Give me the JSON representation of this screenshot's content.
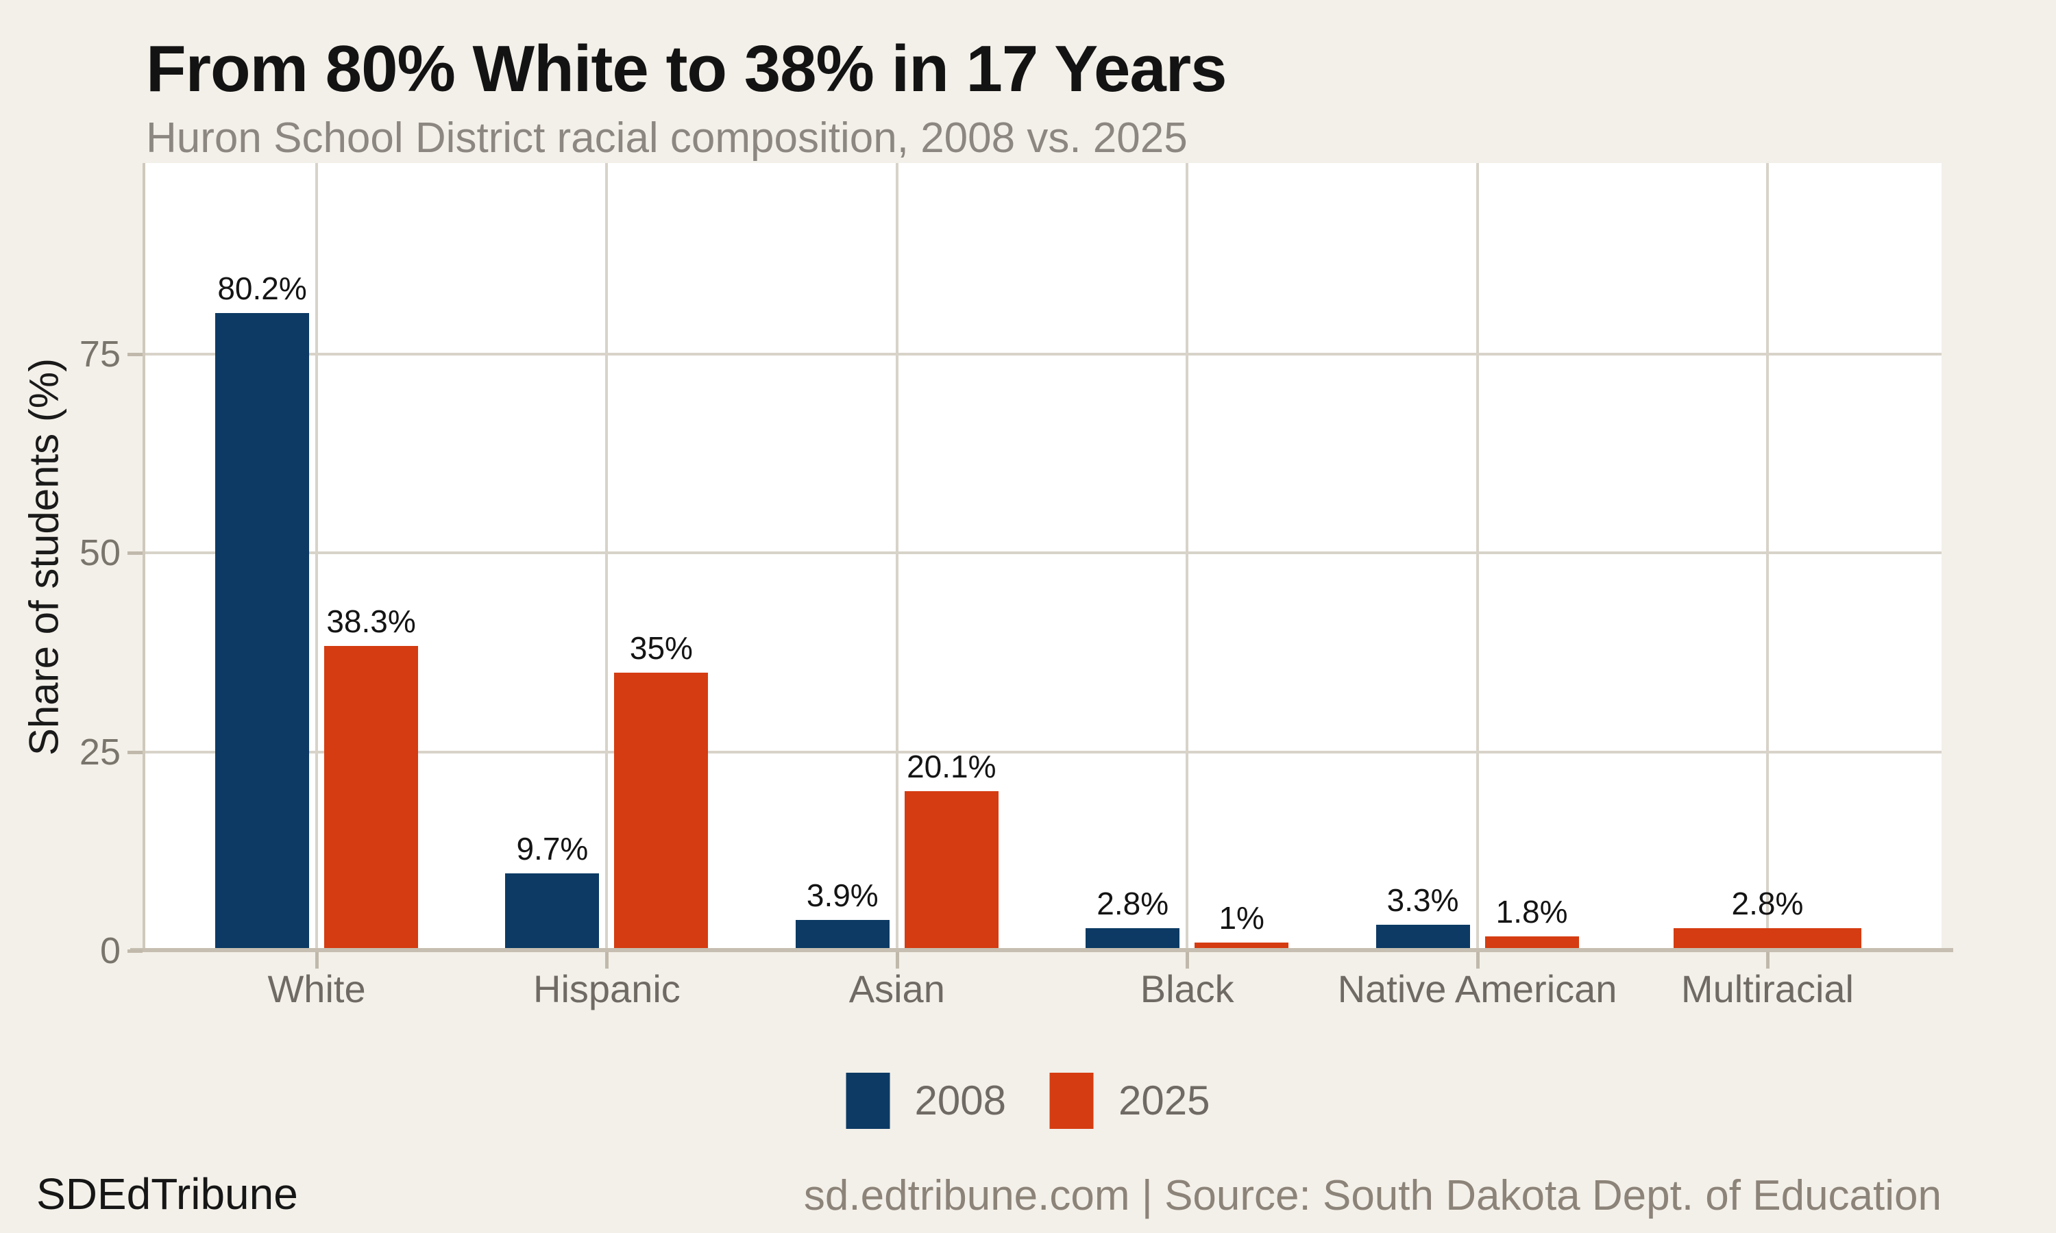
{
  "page": {
    "title": "From 80% White to 38% in 17 Years",
    "subtitle": "Huron School District racial composition, 2008 vs. 2025",
    "footer_left": "SDEdTribune",
    "footer_right": "sd.edtribune.com | Source: South Dakota Dept. of Education"
  },
  "chart_data": {
    "type": "bar",
    "title": "From 80% White to 38% in 17 Years",
    "subtitle": "Huron School District racial composition, 2008 vs. 2025",
    "xlabel": "",
    "ylabel": "Share of students (%)",
    "ylim": [
      0,
      99
    ],
    "yticks": [
      0,
      25,
      50,
      75
    ],
    "ytick_labels": [
      "0",
      "25",
      "50",
      "75"
    ],
    "grid": true,
    "legend_position": "bottom",
    "categories": [
      "White",
      "Hispanic",
      "Asian",
      "Black",
      "Native American",
      "Multiracial"
    ],
    "series": [
      {
        "name": "2008",
        "color": "#0c3a64",
        "values": [
          80.2,
          9.7,
          3.9,
          2.8,
          3.3,
          null
        ],
        "labels": [
          "80.2%",
          "9.7%",
          "3.9%",
          "2.8%",
          "3.3%",
          null
        ]
      },
      {
        "name": "2025",
        "color": "#d53c11",
        "values": [
          38.3,
          35,
          20.1,
          1,
          1.8,
          2.8
        ],
        "labels": [
          "38.3%",
          "35%",
          "20.1%",
          "1%",
          "1.8%",
          "2.8%"
        ]
      }
    ],
    "colors": {
      "background": "#f3f0e9",
      "plot_background": "#ffffff",
      "gridline": "#d8d3c9",
      "axis_line": "#c6bfb1",
      "series_2008": "#0c3a64",
      "series_2025": "#d53c11",
      "tick_label": "#7a756c",
      "category_label": "#6f6b64",
      "value_label": "#141414",
      "subtitle_text": "#8c8781",
      "footer_right_text": "#8c8379"
    }
  }
}
